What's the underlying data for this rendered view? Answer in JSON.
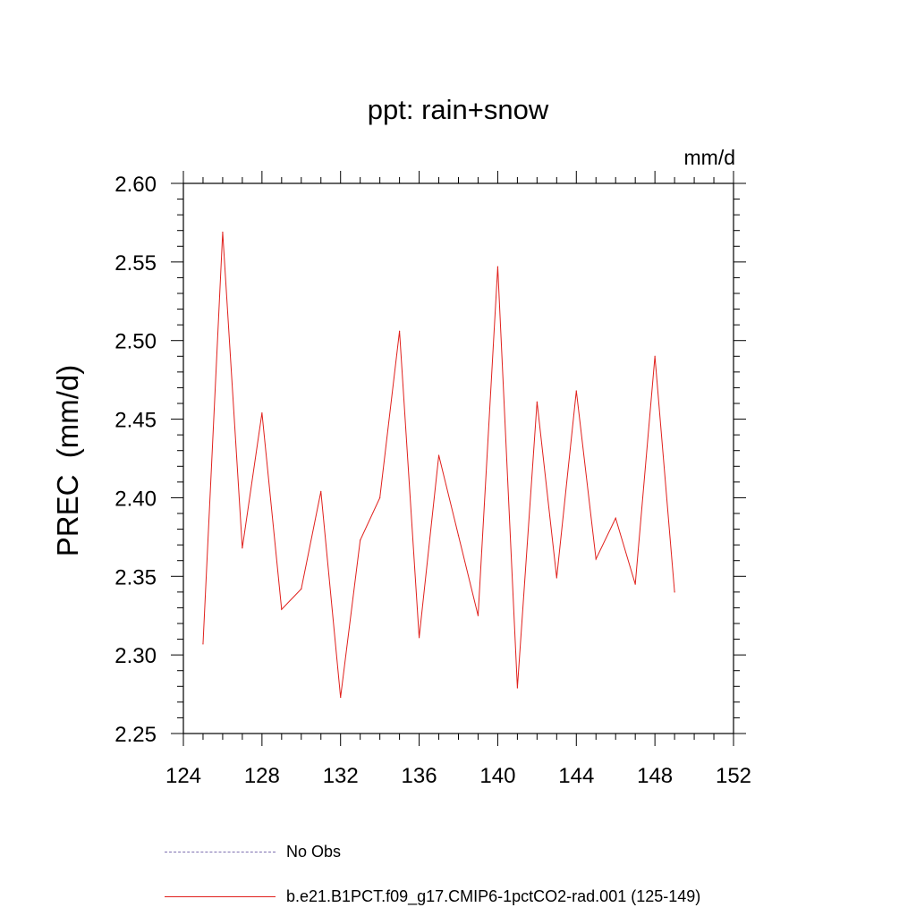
{
  "chart_data": {
    "type": "line",
    "title": "ppt: rain+snow",
    "units_label": "mm/d",
    "ylabel": "PREC  (mm/d)",
    "xlabel": "",
    "xlim": [
      124,
      152
    ],
    "ylim": [
      2.25,
      2.6
    ],
    "x_ticks": [
      124,
      128,
      132,
      136,
      140,
      144,
      148,
      152
    ],
    "y_ticks": [
      "2.25",
      "2.30",
      "2.35",
      "2.40",
      "2.45",
      "2.50",
      "2.55",
      "2.60"
    ],
    "grid": false,
    "legend_placement": "bottom",
    "series": [
      {
        "name": "b.e21.B1PCT.f09_g17.CMIP6-1pctCO2-rad.001 (125-149)",
        "color": "#e0201c",
        "style": "solid",
        "x": [
          125,
          126,
          127,
          128,
          129,
          130,
          131,
          132,
          133,
          134,
          135,
          136,
          137,
          138,
          139,
          140,
          141,
          142,
          143,
          144,
          145,
          146,
          147,
          148,
          149
        ],
        "values": [
          2.307,
          2.569,
          2.368,
          2.454,
          2.329,
          2.342,
          2.404,
          2.273,
          2.373,
          2.4,
          2.506,
          2.311,
          2.427,
          2.376,
          2.325,
          2.547,
          2.279,
          2.461,
          2.349,
          2.468,
          2.361,
          2.387,
          2.345,
          2.49,
          2.34
        ]
      }
    ],
    "legend": [
      {
        "label": "No Obs",
        "style": "dashed",
        "color": "#7d6fb0"
      },
      {
        "label": "b.e21.B1PCT.f09_g17.CMIP6-1pctCO2-rad.001 (125-149)",
        "style": "solid",
        "color": "#e0201c"
      }
    ]
  }
}
